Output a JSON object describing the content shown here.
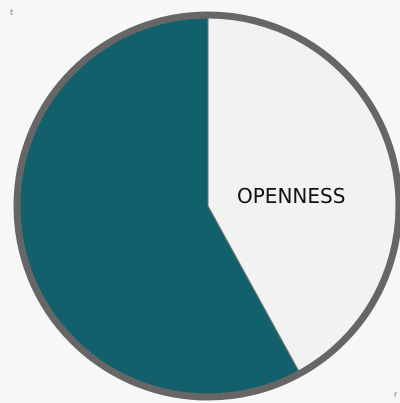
{
  "chart_data": {
    "type": "pie",
    "categories": [
      "OPENNESS",
      null
    ],
    "values": [
      42,
      58
    ],
    "colors": [
      "#f2f2f2",
      "#12606b"
    ],
    "corner_marks": [
      "t",
      "r"
    ]
  }
}
